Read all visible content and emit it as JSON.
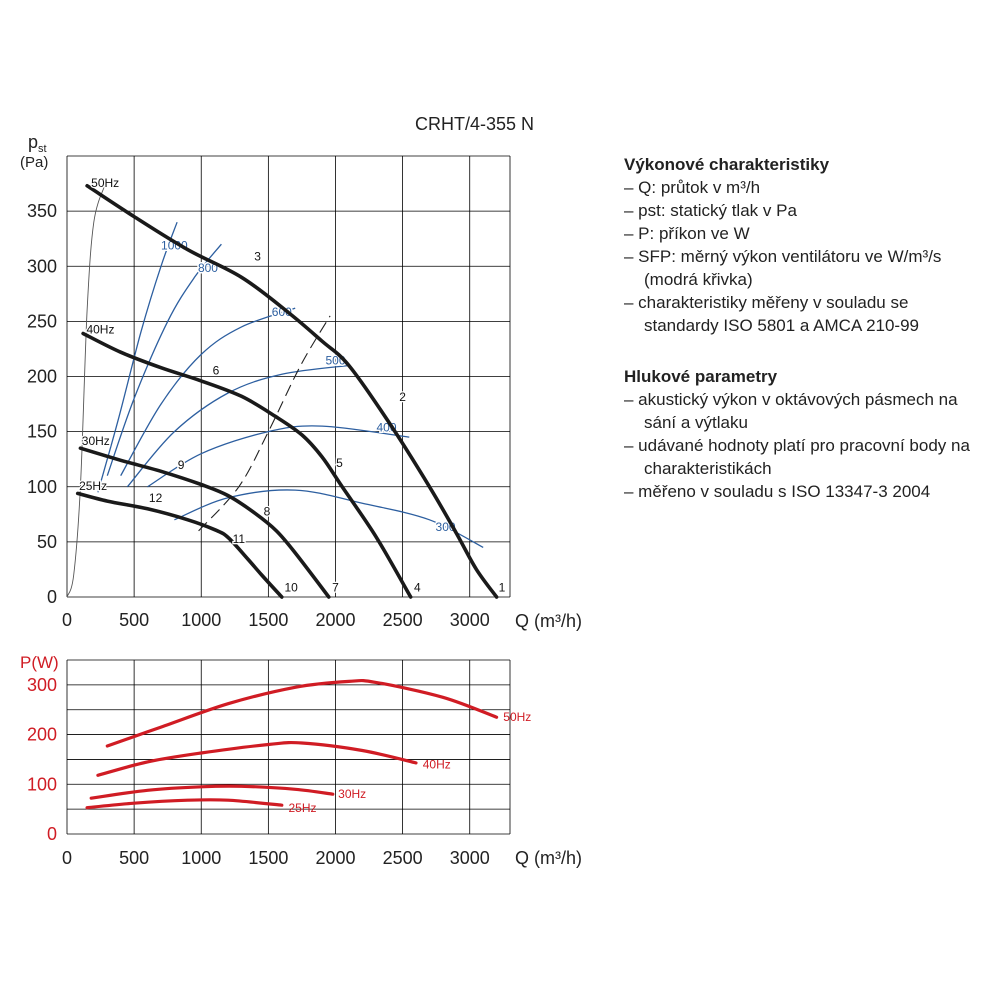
{
  "model_label": "CRHT/4-355 N",
  "performance_legend": {
    "heading": "Výkonové charakteristiky",
    "items": [
      "– Q: průtok v m³/h",
      "– pst: statický tlak v Pa",
      "– P: příkon ve W",
      "– SFP: měrný výkon ventilátoru ve W/m³/s (modrá křivka)",
      "– charakteristiky měřeny v souladu se standardy ISO 5801 a AMCA 210-99"
    ]
  },
  "noise_legend": {
    "heading": "Hlukové parametry",
    "items": [
      "– akustický výkon v oktávových pásmech na sání a výtlaku",
      "– udávané hodnoty platí pro pracovní body na charakteristikách",
      "– měřeno v souladu s ISO 13347-3 2004"
    ]
  },
  "colors": {
    "fan_curve": "#1a1a1a",
    "sfp_curve": "#2d5fa0",
    "power_curve": "#d01c24",
    "grid": "#000000"
  },
  "chart_data": [
    {
      "type": "line",
      "ylabel_main": "p",
      "ylabel_sub": "st",
      "ylabel_unit": "(Pa)",
      "xlabel": "Q (m³/h)",
      "xlim": [
        0,
        3300
      ],
      "ylim": [
        0,
        400
      ],
      "xticks": [
        0,
        500,
        1000,
        1500,
        2000,
        2500,
        3000
      ],
      "yticks": [
        0,
        50,
        100,
        150,
        200,
        250,
        300,
        350
      ],
      "grid": true,
      "fan_curves": [
        {
          "name": "50Hz",
          "points": [
            [
              150,
              373
            ],
            [
              500,
              345
            ],
            [
              900,
              315
            ],
            [
              1300,
              290
            ],
            [
              1650,
              258
            ],
            [
              1900,
              232
            ],
            [
              2100,
              210
            ],
            [
              2400,
              158
            ],
            [
              2700,
              100
            ],
            [
              2900,
              58
            ],
            [
              3050,
              25
            ],
            [
              3200,
              0
            ]
          ]
        },
        {
          "name": "40Hz",
          "points": [
            [
              120,
              239
            ],
            [
              400,
              222
            ],
            [
              700,
              208
            ],
            [
              1000,
              196
            ],
            [
              1300,
              182
            ],
            [
              1550,
              164
            ],
            [
              1750,
              147
            ],
            [
              1900,
              127
            ],
            [
              2050,
              100
            ],
            [
              2300,
              55
            ],
            [
              2560,
              0
            ]
          ]
        },
        {
          "name": "30Hz",
          "points": [
            [
              100,
              135
            ],
            [
              400,
              124
            ],
            [
              700,
              114
            ],
            [
              1000,
              102
            ],
            [
              1200,
              92
            ],
            [
              1400,
              76
            ],
            [
              1560,
              60
            ],
            [
              1700,
              40
            ],
            [
              1950,
              0
            ]
          ]
        },
        {
          "name": "25Hz",
          "points": [
            [
              80,
              94
            ],
            [
              300,
              87
            ],
            [
              600,
              80
            ],
            [
              900,
              70
            ],
            [
              1100,
              61
            ],
            [
              1200,
              54
            ],
            [
              1350,
              34
            ],
            [
              1450,
              20
            ],
            [
              1600,
              0
            ]
          ]
        }
      ],
      "fan_curve_labels": [
        {
          "text": "50Hz",
          "x": 180,
          "y": 372
        },
        {
          "text": "40Hz",
          "x": 145,
          "y": 239
        },
        {
          "text": "30Hz",
          "x": 110,
          "y": 138
        },
        {
          "text": "25Hz",
          "x": 90,
          "y": 97
        }
      ],
      "system_curve": [
        [
          0,
          0
        ],
        [
          50,
          20
        ],
        [
          100,
          100
        ],
        [
          150,
          260
        ],
        [
          200,
          340
        ],
        [
          280,
          373
        ]
      ],
      "sfp_curves": [
        {
          "name": "1000",
          "label_x": 800,
          "label_y": 315,
          "points": [
            [
              230,
              95
            ],
            [
              380,
              160
            ],
            [
              550,
              240
            ],
            [
              700,
              300
            ],
            [
              820,
              340
            ]
          ]
        },
        {
          "name": "800",
          "label_x": 1050,
          "label_y": 295,
          "points": [
            [
              300,
              110
            ],
            [
              500,
              180
            ],
            [
              750,
              250
            ],
            [
              950,
              290
            ],
            [
              1150,
              320
            ]
          ]
        },
        {
          "name": "600",
          "label_x": 1600,
          "label_y": 255,
          "points": [
            [
              400,
              110
            ],
            [
              700,
              175
            ],
            [
              1000,
              220
            ],
            [
              1300,
              245
            ],
            [
              1700,
              262
            ]
          ]
        },
        {
          "name": "500",
          "label_x": 2000,
          "label_y": 211,
          "points": [
            [
              450,
              100
            ],
            [
              800,
              150
            ],
            [
              1200,
              185
            ],
            [
              1600,
              202
            ],
            [
              2100,
              210
            ]
          ]
        },
        {
          "name": "400",
          "label_x": 2380,
          "label_y": 150,
          "points": [
            [
              600,
              100
            ],
            [
              1000,
              130
            ],
            [
              1500,
              150
            ],
            [
              1900,
              155
            ],
            [
              2550,
              145
            ]
          ]
        },
        {
          "name": "300",
          "label_x": 2820,
          "label_y": 60,
          "points": [
            [
              800,
              70
            ],
            [
              1200,
              90
            ],
            [
              1700,
              97
            ],
            [
              2200,
              85
            ],
            [
              2700,
              70
            ],
            [
              3100,
              45
            ]
          ]
        }
      ],
      "operating_line": [
        [
          980,
          60
        ],
        [
          1280,
          100
        ],
        [
          1500,
          150
        ],
        [
          1740,
          210
        ],
        [
          1960,
          255
        ]
      ],
      "point_labels": [
        {
          "n": "1",
          "x": 3240,
          "y": 5
        },
        {
          "n": "2",
          "x": 2500,
          "y": 178
        },
        {
          "n": "3",
          "x": 1420,
          "y": 305
        },
        {
          "n": "4",
          "x": 2610,
          "y": 5
        },
        {
          "n": "5",
          "x": 2030,
          "y": 118
        },
        {
          "n": "6",
          "x": 1110,
          "y": 202
        },
        {
          "n": "7",
          "x": 2000,
          "y": 5
        },
        {
          "n": "8",
          "x": 1490,
          "y": 74
        },
        {
          "n": "9",
          "x": 850,
          "y": 116
        },
        {
          "n": "10",
          "x": 1670,
          "y": 5
        },
        {
          "n": "11",
          "x": 1280,
          "y": 49
        },
        {
          "n": "12",
          "x": 660,
          "y": 86
        }
      ]
    },
    {
      "type": "line",
      "ylabel": "P(W)",
      "xlabel": "Q (m³/h)",
      "xlim": [
        0,
        3300
      ],
      "ylim": [
        0,
        350
      ],
      "xticks": [
        0,
        500,
        1000,
        1500,
        2000,
        2500,
        3000
      ],
      "yticks": [
        0,
        100,
        200,
        300
      ],
      "grid": true,
      "series": [
        {
          "name": "50Hz",
          "points": [
            [
              300,
              177
            ],
            [
              700,
              215
            ],
            [
              1200,
              262
            ],
            [
              1700,
              295
            ],
            [
              2100,
              307
            ],
            [
              2300,
              305
            ],
            [
              2800,
              275
            ],
            [
              3200,
              235
            ]
          ]
        },
        {
          "name": "40Hz",
          "points": [
            [
              230,
              118
            ],
            [
              600,
              145
            ],
            [
              1000,
              163
            ],
            [
              1500,
              180
            ],
            [
              1750,
              183
            ],
            [
              2200,
              168
            ],
            [
              2600,
              143
            ]
          ]
        },
        {
          "name": "30Hz",
          "points": [
            [
              180,
              72
            ],
            [
              600,
              88
            ],
            [
              1000,
              95
            ],
            [
              1300,
              96
            ],
            [
              1700,
              90
            ],
            [
              1980,
              80
            ]
          ]
        },
        {
          "name": "25Hz",
          "points": [
            [
              150,
              53
            ],
            [
              500,
              62
            ],
            [
              900,
              68
            ],
            [
              1200,
              68
            ],
            [
              1600,
              58
            ]
          ]
        }
      ],
      "series_labels": [
        {
          "text": "50Hz",
          "x": 3250,
          "y": 235
        },
        {
          "text": "40Hz",
          "x": 2650,
          "y": 140
        },
        {
          "text": "30Hz",
          "x": 2020,
          "y": 80
        },
        {
          "text": "25Hz",
          "x": 1650,
          "y": 52
        }
      ]
    }
  ]
}
